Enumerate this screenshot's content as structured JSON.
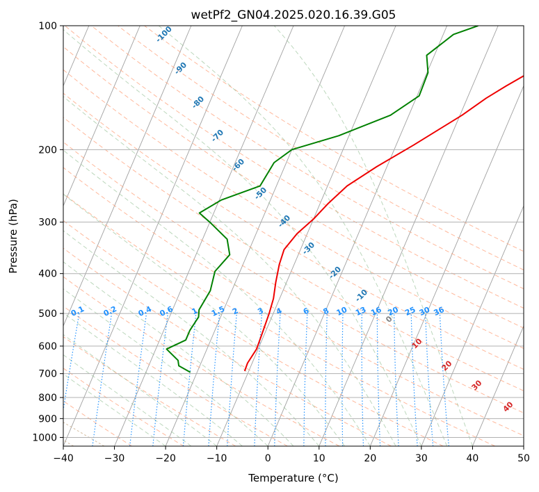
{
  "chart_data": {
    "type": "line",
    "title": "wetPf2_GN04.2025.020.16.39.G05",
    "xlabel": "Temperature (°C)",
    "ylabel": "Pressure (hPa)",
    "xlim": [
      -40,
      50
    ],
    "ylim": [
      1050,
      100
    ],
    "y_scale": "log",
    "x_ticks": [
      -40,
      -30,
      -20,
      -10,
      0,
      10,
      20,
      30,
      40,
      50
    ],
    "y_ticks": [
      100,
      200,
      300,
      400,
      500,
      600,
      700,
      800,
      900,
      1000
    ],
    "grid": true,
    "series": [
      {
        "variable": "temperature",
        "color": "#ee0000",
        "points": [
          [
            -10.8,
            690
          ],
          [
            -10.9,
            660
          ],
          [
            -10.3,
            610
          ],
          [
            -10.5,
            560
          ],
          [
            -10.8,
            500
          ],
          [
            -11.2,
            460
          ],
          [
            -12.1,
            420
          ],
          [
            -12.9,
            380
          ],
          [
            -13.2,
            350
          ],
          [
            -12.0,
            320
          ],
          [
            -10.0,
            295
          ],
          [
            -8.4,
            270
          ],
          [
            -6.2,
            245
          ],
          [
            -2.0,
            220
          ],
          [
            3.4,
            195
          ],
          [
            10.4,
            165
          ],
          [
            13.7,
            150
          ],
          [
            16.6,
            140
          ],
          [
            20.0,
            130
          ],
          [
            24.1,
            120
          ],
          [
            27.7,
            110
          ],
          [
            30.7,
            100
          ]
        ]
      },
      {
        "variable": "dewpoint",
        "color": "#008000",
        "points": [
          [
            -21.3,
            695
          ],
          [
            -24.1,
            670
          ],
          [
            -24.7,
            650
          ],
          [
            -27.9,
            610
          ],
          [
            -24.9,
            580
          ],
          [
            -24.9,
            550
          ],
          [
            -24.3,
            510
          ],
          [
            -24.8,
            490
          ],
          [
            -24.2,
            440
          ],
          [
            -24.9,
            395
          ],
          [
            -23.4,
            360
          ],
          [
            -25.2,
            330
          ],
          [
            -30.0,
            300
          ],
          [
            -32.8,
            285
          ],
          [
            -29.6,
            265
          ],
          [
            -23.2,
            245
          ],
          [
            -22.4,
            215
          ],
          [
            -20.0,
            200
          ],
          [
            -12.0,
            185
          ],
          [
            -3.6,
            165
          ],
          [
            0.4,
            148
          ],
          [
            0.2,
            130
          ],
          [
            -1.5,
            118
          ],
          [
            2.0,
            105
          ],
          [
            6.1,
            100
          ]
        ]
      }
    ],
    "background_lines": {
      "isotherms_color": "#a0a0a0",
      "dry_adiabats_color": "#ffa07a",
      "moist_adiabats_color": "#8fbc8f",
      "mixing_ratio_color": "#1e90ff",
      "thetae_color": "#c8a882"
    },
    "mixing_ratio_labels": [
      "0.1",
      "0.2",
      "0.4",
      "0.6",
      "1",
      "1.5",
      "2",
      "3",
      "4",
      "6",
      "8",
      "10",
      "13",
      "16",
      "20",
      "25",
      "30",
      "36"
    ],
    "dry_adiabat_labels": [
      "-100",
      "-90",
      "-80",
      "-70",
      "-60",
      "-50",
      "-40",
      "-30",
      "-20",
      "-10",
      "0",
      "10",
      "20",
      "30",
      "40"
    ]
  }
}
